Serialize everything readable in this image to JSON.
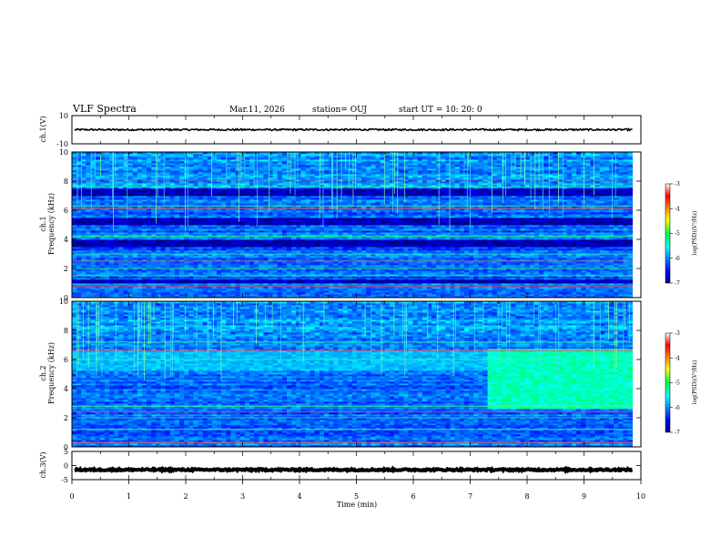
{
  "header": {
    "title": "VLF Spectra",
    "date": "Mar.11, 2026",
    "station": "station= OUJ",
    "start": "start  UT =    10: 20: 0"
  },
  "chart_data": [
    {
      "type": "line",
      "name": "ch1-waveform",
      "ylabel": "ch.1(V)",
      "ylim": [
        -10,
        10
      ],
      "yticks": [
        "10",
        "-10"
      ],
      "xlim": [
        0,
        10
      ],
      "trace": {
        "x_end": 9.85,
        "center": 0,
        "spread": 0.6
      }
    },
    {
      "type": "heatmap",
      "name": "ch1-spectrogram",
      "ylabel_line1": "ch.1",
      "ylabel_line2": "Frequency (kHz)",
      "ylim": [
        0,
        10
      ],
      "yticks": [
        "0",
        "2",
        "4",
        "6",
        "8",
        "10"
      ],
      "xlim": [
        0,
        10
      ],
      "data_x_end": 9.85,
      "colorbar": {
        "label": "log(PSD)(V²/Hz)",
        "ticks": [
          "-3",
          "-4",
          "-5",
          "-6",
          "-7"
        ],
        "range": [
          -7,
          -3
        ]
      },
      "dark_bands_khz": [
        [
          5.0,
          5.5
        ],
        [
          3.5,
          4.0
        ],
        [
          7.0,
          7.5
        ],
        [
          1.0,
          1.3
        ]
      ],
      "bright_lines_khz": [
        0.8,
        1.5,
        2.0,
        2.5,
        3.0,
        4.2,
        6.1,
        6.3,
        7.6,
        8.1
      ]
    },
    {
      "type": "heatmap",
      "name": "ch2-spectrogram",
      "ylabel_line1": "ch.2",
      "ylabel_line2": "Frequency (kHz)",
      "ylim": [
        0,
        10
      ],
      "yticks": [
        "0",
        "2",
        "4",
        "6",
        "8",
        "10"
      ],
      "xlim": [
        0,
        10
      ],
      "data_x_end": 9.85,
      "colorbar": {
        "label": "log(PSD)(V²/Hz)",
        "ticks": [
          "-3",
          "-4",
          "-5",
          "-6",
          "-7"
        ],
        "range": [
          -7,
          -3
        ]
      },
      "enhanced_region": {
        "t_start": 7.3,
        "t_end": 9.85,
        "f_low": 2.6,
        "f_high": 6.8
      },
      "bright_lines_khz": [
        0.3,
        1.2,
        2.0,
        2.4,
        2.8,
        6.0,
        6.6,
        7.2
      ]
    },
    {
      "type": "line",
      "name": "ch3-waveform",
      "ylabel": "ch.3(V)",
      "ylim": [
        -5,
        5
      ],
      "yticks": [
        "5",
        "0",
        "-5"
      ],
      "xlim": [
        0,
        10
      ],
      "trace": {
        "x_end": 9.85,
        "center": -1.5,
        "spread": 0.3
      }
    }
  ],
  "xaxis": {
    "label": "Time (min)",
    "ticks": [
      "0",
      "1",
      "2",
      "3",
      "4",
      "5",
      "6",
      "7",
      "8",
      "9",
      "10"
    ]
  }
}
